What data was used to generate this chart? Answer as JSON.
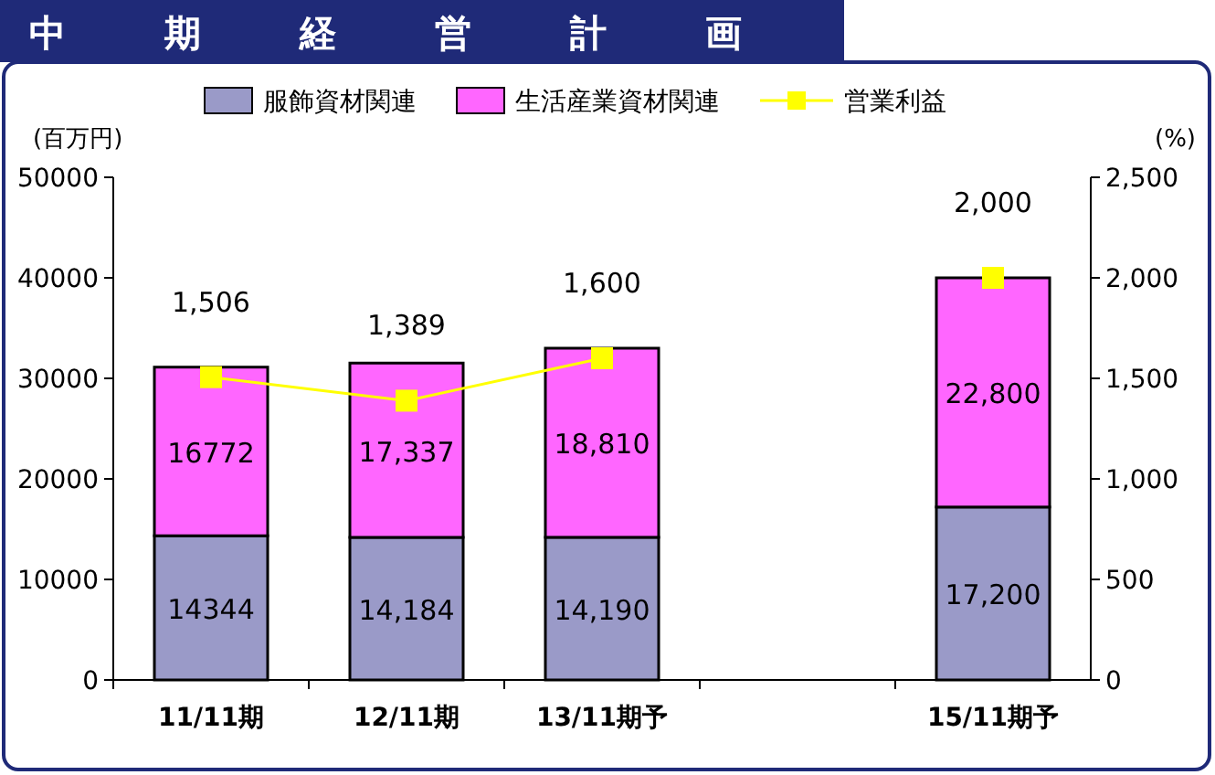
{
  "chart_data": {
    "type": "bar",
    "title": "中期経営計画",
    "ylabel": "(百万円)",
    "y2label": "(%)",
    "stacked": true,
    "legend": "top",
    "categories": [
      "11/11期",
      "12/11期",
      "13/11期予",
      null,
      "15/11期予"
    ],
    "series": [
      {
        "name": "服飾資材関連",
        "color": "#9a9ac8",
        "values": [
          14344,
          14184,
          14190,
          null,
          17200
        ],
        "value_labels": [
          "14344",
          "14,184",
          "14,190",
          null,
          "17,200"
        ]
      },
      {
        "name": "生活産業資材関連",
        "color": "#ff66ff",
        "values": [
          16772,
          17337,
          18810,
          null,
          22800
        ],
        "value_labels": [
          "16772",
          "17,337",
          "18,810",
          null,
          "22,800"
        ]
      },
      {
        "name": "営業利益",
        "type": "line",
        "axis": "y2",
        "color": "#ffff00",
        "marker": "square",
        "values": [
          1506,
          1389,
          1600,
          null,
          2000
        ],
        "value_labels": [
          "1,506",
          "1,389",
          "1,600",
          null,
          "2,000"
        ]
      }
    ],
    "ylim": [
      0,
      50000
    ],
    "yticks": [
      0,
      10000,
      20000,
      30000,
      40000,
      50000
    ],
    "y2lim": [
      0,
      2500
    ],
    "y2ticks": [
      0,
      {
        "value": 500,
        "label": "500"
      },
      {
        "value": 1000,
        "label": "1,000"
      },
      {
        "value": 1500,
        "label": "1,500"
      },
      {
        "value": 2000,
        "label": "2,000"
      },
      {
        "value": 2500,
        "label": "2,500"
      }
    ]
  }
}
